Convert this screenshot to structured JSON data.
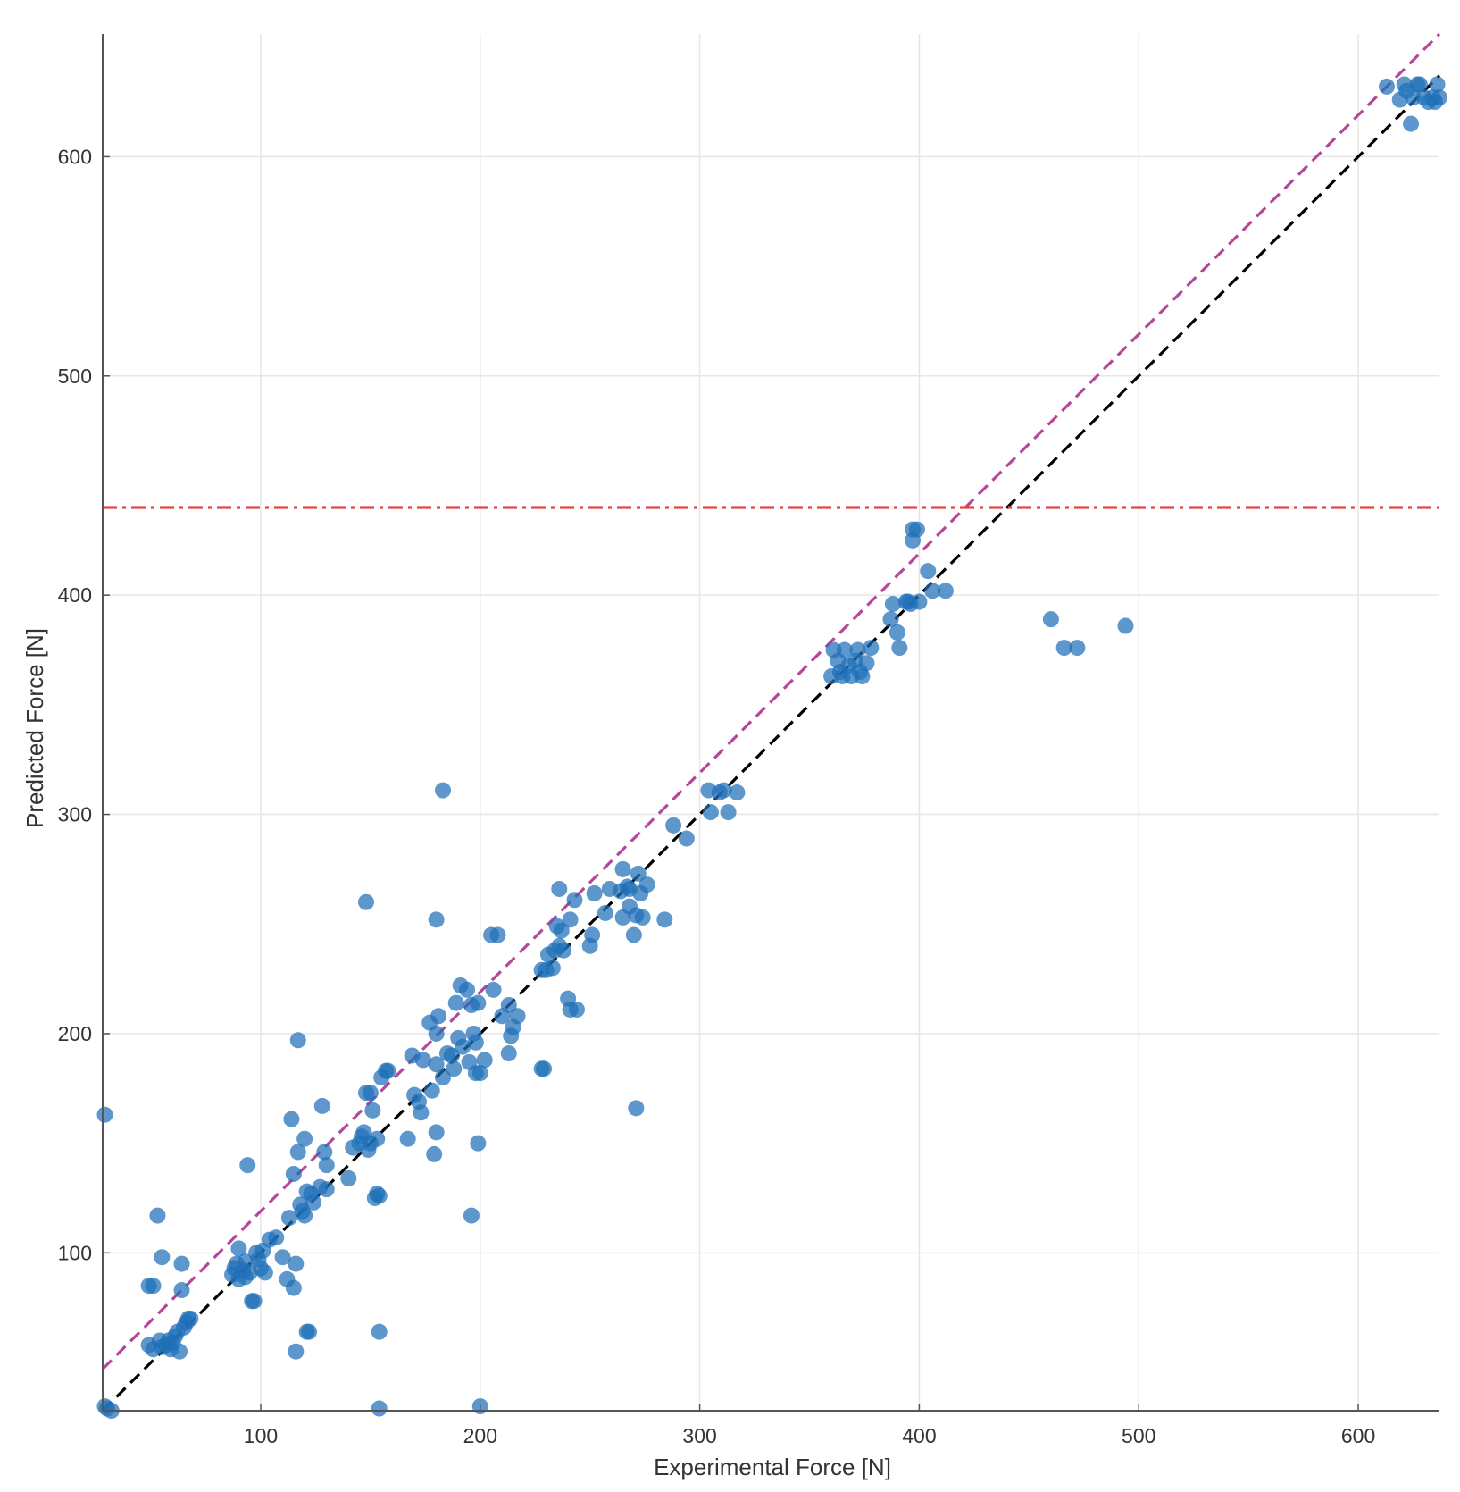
{
  "chart_data": {
    "type": "scatter",
    "xlabel": "Experimental Force [N]",
    "ylabel": "Predicted Force [N]",
    "xlim": [
      28,
      637
    ],
    "ylim": [
      28,
      656
    ],
    "xticks": [
      100,
      200,
      300,
      400,
      500,
      600
    ],
    "yticks": [
      100,
      200,
      300,
      400,
      500,
      600
    ],
    "grid": true,
    "colors": {
      "points": "#1f6fb8",
      "identity_line": "#000000",
      "offset_line": "#b5479a",
      "threshold_line": "#e04848",
      "grid": "#e6e6e6",
      "axis": "#555555"
    },
    "reference_lines": [
      {
        "kind": "identity",
        "x": [
          28,
          637
        ],
        "y": [
          28,
          637
        ],
        "style": "dashed",
        "color": "#000000"
      },
      {
        "kind": "offset",
        "x": [
          28,
          637
        ],
        "y": [
          47,
          656
        ],
        "style": "dashed",
        "color": "#b5479a"
      },
      {
        "kind": "threshold",
        "y": 440,
        "style": "dash-dot",
        "color": "#e04848"
      }
    ],
    "points": [
      [
        29,
        163
      ],
      [
        29,
        30
      ],
      [
        30,
        29
      ],
      [
        32,
        28
      ],
      [
        49,
        85
      ],
      [
        51,
        85
      ],
      [
        49,
        58
      ],
      [
        51,
        56
      ],
      [
        54,
        60
      ],
      [
        55,
        57
      ],
      [
        53,
        117
      ],
      [
        55,
        98
      ],
      [
        57,
        58
      ],
      [
        58,
        60
      ],
      [
        59,
        56
      ],
      [
        60,
        59
      ],
      [
        61,
        62
      ],
      [
        62,
        64
      ],
      [
        63,
        55
      ],
      [
        64,
        95
      ],
      [
        64,
        83
      ],
      [
        65,
        66
      ],
      [
        66,
        68
      ],
      [
        67,
        70
      ],
      [
        68,
        70
      ],
      [
        87,
        90
      ],
      [
        88,
        93
      ],
      [
        89,
        95
      ],
      [
        90,
        102
      ],
      [
        90,
        88
      ],
      [
        92,
        92
      ],
      [
        93,
        96
      ],
      [
        93,
        89
      ],
      [
        94,
        140
      ],
      [
        95,
        91
      ],
      [
        96,
        78
      ],
      [
        97,
        78
      ],
      [
        98,
        100
      ],
      [
        99,
        97
      ],
      [
        100,
        93
      ],
      [
        101,
        101
      ],
      [
        102,
        91
      ],
      [
        104,
        106
      ],
      [
        107,
        107
      ],
      [
        110,
        98
      ],
      [
        112,
        88
      ],
      [
        113,
        116
      ],
      [
        114,
        161
      ],
      [
        115,
        136
      ],
      [
        115,
        84
      ],
      [
        116,
        55
      ],
      [
        116,
        95
      ],
      [
        117,
        146
      ],
      [
        117,
        197
      ],
      [
        118,
        122
      ],
      [
        119,
        119
      ],
      [
        120,
        117
      ],
      [
        120,
        152
      ],
      [
        121,
        128
      ],
      [
        121,
        64
      ],
      [
        122,
        64
      ],
      [
        123,
        127
      ],
      [
        124,
        123
      ],
      [
        127,
        130
      ],
      [
        128,
        167
      ],
      [
        129,
        146
      ],
      [
        130,
        140
      ],
      [
        130,
        129
      ],
      [
        140,
        134
      ],
      [
        142,
        148
      ],
      [
        145,
        150
      ],
      [
        146,
        153
      ],
      [
        147,
        155
      ],
      [
        148,
        173
      ],
      [
        148,
        260
      ],
      [
        149,
        147
      ],
      [
        150,
        150
      ],
      [
        150,
        173
      ],
      [
        151,
        165
      ],
      [
        152,
        125
      ],
      [
        153,
        152
      ],
      [
        153,
        127
      ],
      [
        154,
        126
      ],
      [
        154,
        64
      ],
      [
        154,
        29
      ],
      [
        155,
        180
      ],
      [
        157,
        183
      ],
      [
        158,
        183
      ],
      [
        167,
        152
      ],
      [
        169,
        190
      ],
      [
        170,
        172
      ],
      [
        172,
        169
      ],
      [
        173,
        164
      ],
      [
        174,
        188
      ],
      [
        177,
        205
      ],
      [
        178,
        174
      ],
      [
        179,
        145
      ],
      [
        180,
        186
      ],
      [
        180,
        252
      ],
      [
        180,
        155
      ],
      [
        180,
        200
      ],
      [
        181,
        208
      ],
      [
        183,
        311
      ],
      [
        183,
        180
      ],
      [
        185,
        191
      ],
      [
        187,
        190
      ],
      [
        188,
        184
      ],
      [
        189,
        214
      ],
      [
        190,
        198
      ],
      [
        191,
        222
      ],
      [
        192,
        194
      ],
      [
        194,
        220
      ],
      [
        195,
        187
      ],
      [
        196,
        213
      ],
      [
        196,
        117
      ],
      [
        197,
        200
      ],
      [
        198,
        182
      ],
      [
        198,
        196
      ],
      [
        199,
        214
      ],
      [
        199,
        150
      ],
      [
        200,
        182
      ],
      [
        200,
        30
      ],
      [
        202,
        188
      ],
      [
        205,
        245
      ],
      [
        206,
        220
      ],
      [
        208,
        245
      ],
      [
        210,
        208
      ],
      [
        213,
        213
      ],
      [
        213,
        191
      ],
      [
        214,
        199
      ],
      [
        215,
        203
      ],
      [
        217,
        208
      ],
      [
        228,
        229
      ],
      [
        228,
        184
      ],
      [
        229,
        184
      ],
      [
        230,
        229
      ],
      [
        231,
        236
      ],
      [
        233,
        230
      ],
      [
        234,
        238
      ],
      [
        235,
        249
      ],
      [
        236,
        266
      ],
      [
        236,
        240
      ],
      [
        237,
        247
      ],
      [
        238,
        238
      ],
      [
        240,
        216
      ],
      [
        241,
        252
      ],
      [
        241,
        211
      ],
      [
        243,
        261
      ],
      [
        244,
        211
      ],
      [
        250,
        240
      ],
      [
        251,
        245
      ],
      [
        252,
        264
      ],
      [
        257,
        255
      ],
      [
        259,
        266
      ],
      [
        264,
        265
      ],
      [
        265,
        253
      ],
      [
        265,
        275
      ],
      [
        267,
        267
      ],
      [
        268,
        258
      ],
      [
        268,
        266
      ],
      [
        270,
        245
      ],
      [
        271,
        254
      ],
      [
        271,
        166
      ],
      [
        272,
        273
      ],
      [
        273,
        264
      ],
      [
        274,
        253
      ],
      [
        276,
        268
      ],
      [
        284,
        252
      ],
      [
        288,
        295
      ],
      [
        294,
        289
      ],
      [
        304,
        311
      ],
      [
        305,
        301
      ],
      [
        309,
        310
      ],
      [
        311,
        311
      ],
      [
        313,
        301
      ],
      [
        317,
        310
      ],
      [
        360,
        363
      ],
      [
        361,
        375
      ],
      [
        363,
        370
      ],
      [
        364,
        365
      ],
      [
        365,
        363
      ],
      [
        366,
        375
      ],
      [
        368,
        368
      ],
      [
        369,
        363
      ],
      [
        371,
        370
      ],
      [
        372,
        375
      ],
      [
        373,
        365
      ],
      [
        374,
        363
      ],
      [
        376,
        369
      ],
      [
        378,
        376
      ],
      [
        387,
        389
      ],
      [
        388,
        396
      ],
      [
        390,
        383
      ],
      [
        391,
        376
      ],
      [
        394,
        397
      ],
      [
        395,
        397
      ],
      [
        396,
        396
      ],
      [
        397,
        430
      ],
      [
        397,
        425
      ],
      [
        399,
        430
      ],
      [
        400,
        397
      ],
      [
        404,
        411
      ],
      [
        406,
        402
      ],
      [
        412,
        402
      ],
      [
        460,
        389
      ],
      [
        466,
        376
      ],
      [
        472,
        376
      ],
      [
        494,
        386
      ],
      [
        613,
        632
      ],
      [
        619,
        626
      ],
      [
        621,
        633
      ],
      [
        622,
        630
      ],
      [
        624,
        615
      ],
      [
        625,
        627
      ],
      [
        627,
        633
      ],
      [
        628,
        633
      ],
      [
        630,
        627
      ],
      [
        632,
        625
      ],
      [
        634,
        627
      ],
      [
        635,
        625
      ],
      [
        636,
        633
      ],
      [
        637,
        627
      ]
    ]
  }
}
